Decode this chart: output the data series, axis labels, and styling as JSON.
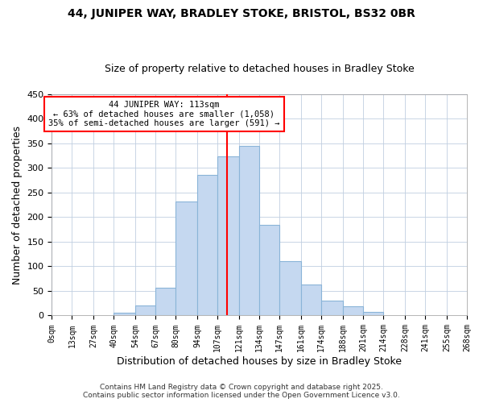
{
  "title": "44, JUNIPER WAY, BRADLEY STOKE, BRISTOL, BS32 0BR",
  "subtitle": "Size of property relative to detached houses in Bradley Stoke",
  "xlabel": "Distribution of detached houses by size in Bradley Stoke",
  "ylabel": "Number of detached properties",
  "bar_color": "#c5d8f0",
  "bar_edge_color": "#8ab4d8",
  "background_color": "#ffffff",
  "grid_color": "#c0cfe0",
  "vline_x": 113,
  "vline_color": "red",
  "annotation_title": "44 JUNIPER WAY: 113sqm",
  "annotation_line1": "← 63% of detached houses are smaller (1,058)",
  "annotation_line2": "35% of semi-detached houses are larger (591) →",
  "annotation_box_color": "red",
  "bin_edges": [
    0,
    13,
    27,
    40,
    54,
    67,
    80,
    94,
    107,
    121,
    134,
    147,
    161,
    174,
    188,
    201,
    214,
    228,
    241,
    255,
    268
  ],
  "bin_counts": [
    0,
    0,
    0,
    5,
    20,
    57,
    232,
    285,
    323,
    345,
    184,
    110,
    63,
    30,
    18,
    8,
    0,
    0,
    0,
    0
  ],
  "ylim": [
    0,
    450
  ],
  "yticks": [
    0,
    50,
    100,
    150,
    200,
    250,
    300,
    350,
    400,
    450
  ],
  "footer_line1": "Contains HM Land Registry data © Crown copyright and database right 2025.",
  "footer_line2": "Contains public sector information licensed under the Open Government Licence v3.0."
}
